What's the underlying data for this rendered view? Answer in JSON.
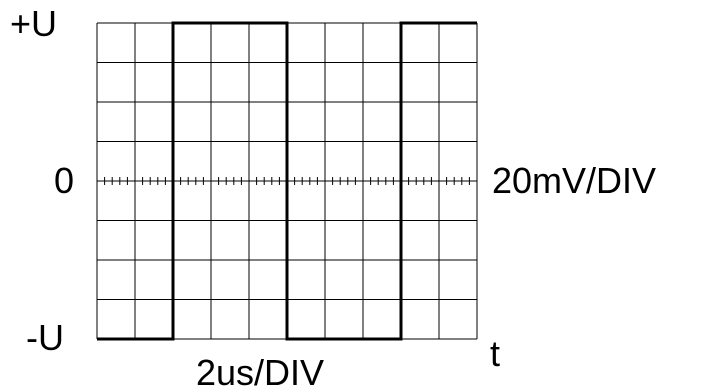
{
  "labels": {
    "y_top": "+U",
    "y_zero": "0",
    "y_bottom": "-U",
    "volts_per_div": "20mV/DIV",
    "time_per_div": "2us/DIV",
    "time_axis": "t"
  },
  "graticule": {
    "horizontal_divisions": 10,
    "vertical_divisions": 8,
    "center_minor_ticks_per_div": 5
  },
  "waveform": {
    "type": "square",
    "levels": [
      "high",
      "low"
    ],
    "segments": [
      {
        "from_div": 0,
        "to_div": 2,
        "level": "low"
      },
      {
        "from_div": 2,
        "to_div": 5,
        "level": "high"
      },
      {
        "from_div": 5,
        "to_div": 8,
        "level": "low"
      },
      {
        "from_div": 8,
        "to_div": 10,
        "level": "high"
      }
    ]
  },
  "colors": {
    "grid": "#000000",
    "trace": "#000000",
    "background": "#ffffff"
  }
}
